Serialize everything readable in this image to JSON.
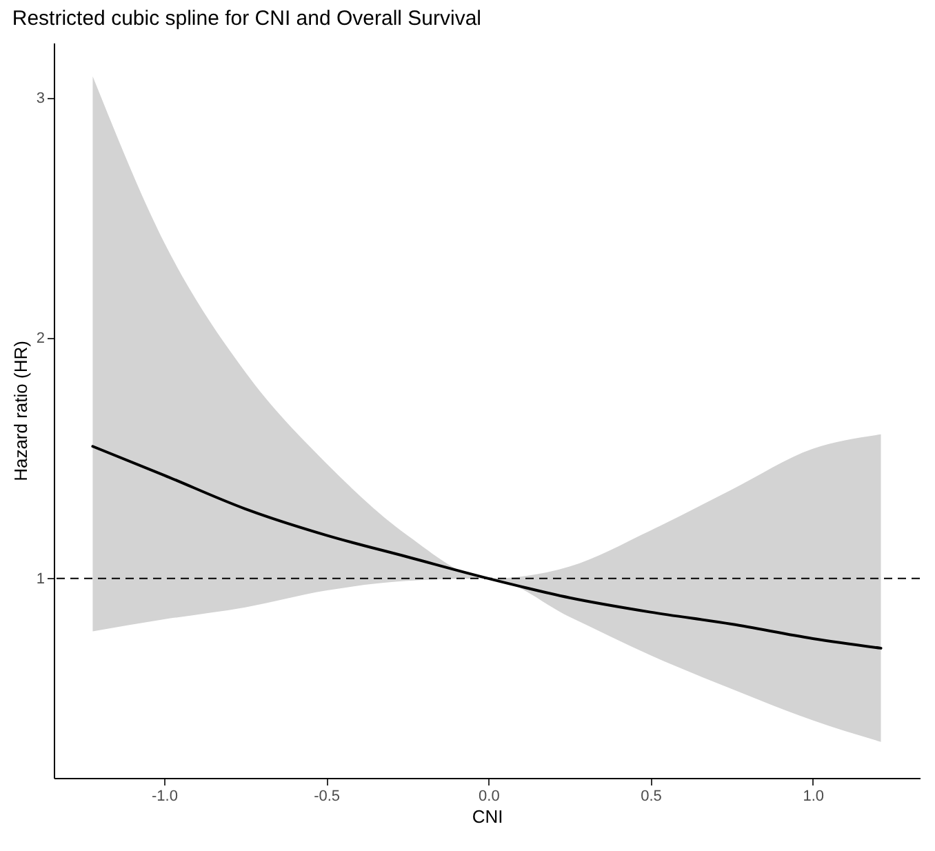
{
  "chart_data": {
    "type": "line",
    "title": "Restricted cubic spline for CNI and Overall Survival",
    "xlabel": "CNI",
    "ylabel": "Hazard ratio (HR)",
    "xlim": [
      -1.34,
      1.33
    ],
    "ylim": [
      0.17,
      3.23
    ],
    "xticks": [
      {
        "value": -1,
        "label": "-1.0"
      },
      {
        "value": -0.5,
        "label": "-0.5"
      },
      {
        "value": 0,
        "label": "0.0"
      },
      {
        "value": 0.5,
        "label": "0.5"
      },
      {
        "value": 1,
        "label": "1.0"
      }
    ],
    "yticks": [
      1,
      2,
      3
    ],
    "grid": false,
    "series": [
      {
        "color": "#000000",
        "x": [
          -1.22,
          -1.0,
          -0.75,
          -0.5,
          -0.25,
          0.0,
          0.25,
          0.5,
          0.75,
          1.0,
          1.21
        ],
        "values": [
          1.55,
          1.43,
          1.29,
          1.18,
          1.09,
          1.0,
          0.92,
          0.86,
          0.81,
          0.75,
          0.71
        ],
        "lower": [
          0.78,
          0.83,
          0.88,
          0.95,
          0.99,
          1.0,
          0.84,
          0.68,
          0.54,
          0.41,
          0.32
        ],
        "upper": [
          3.09,
          2.4,
          1.86,
          1.48,
          1.18,
          1.0,
          1.05,
          1.2,
          1.37,
          1.54,
          1.6
        ]
      }
    ],
    "ref_lines": [
      {
        "axis": "y",
        "value": 1,
        "line_style": "dashed",
        "color": "#000000"
      }
    ]
  }
}
